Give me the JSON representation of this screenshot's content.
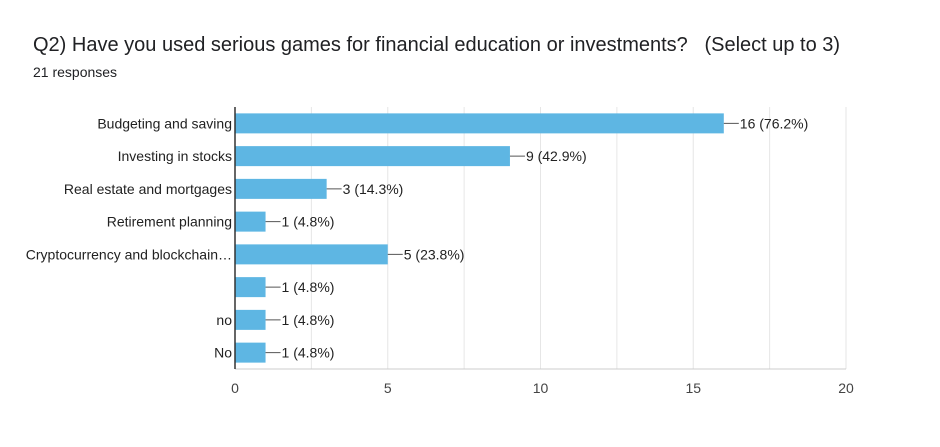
{
  "chart_data": {
    "type": "bar",
    "orientation": "horizontal",
    "title": "Q2) Have you used serious games for financial education or investments?   (Select up to 3)",
    "subtitle": "21 responses",
    "categories": [
      "Budgeting and saving",
      "Investing in stocks",
      "Real estate and mortgages",
      "Retirement planning",
      "Cryptocurrency and blockchain…",
      "",
      "no",
      "No"
    ],
    "values": [
      16,
      9,
      3,
      1,
      5,
      1,
      1,
      1
    ],
    "data_labels": [
      "16 (76.2%)",
      "9 (42.9%)",
      "3 (14.3%)",
      "1 (4.8%)",
      "5 (23.8%)",
      "1 (4.8%)",
      "1 (4.8%)",
      "1 (4.8%)"
    ],
    "xlim": [
      0,
      20
    ],
    "xticks": [
      0,
      5,
      10,
      15,
      20
    ],
    "grid": true,
    "bar_color": "#5eb6e3",
    "gridline_color": "#e6e6e6",
    "axis_color": "#333333"
  }
}
